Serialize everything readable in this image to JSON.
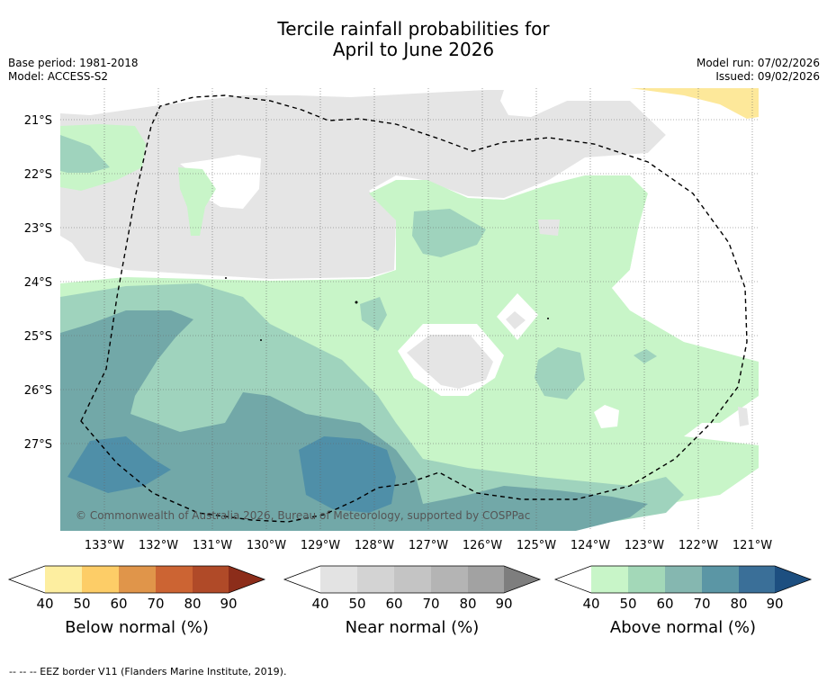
{
  "title": {
    "line1": "Tercile rainfall probabilities for",
    "line2": "April to June 2026"
  },
  "meta_left": {
    "base_period": "Base period: 1981-2018",
    "model": "Model: ACCESS-S2"
  },
  "meta_right": {
    "model_run": "Model run: 07/02/2026",
    "issued": "Issued: 09/02/2026"
  },
  "map": {
    "lat_labels": [
      "21°S",
      "22°S",
      "23°S",
      "24°S",
      "25°S",
      "26°S",
      "27°S"
    ],
    "lon_labels": [
      "133°W",
      "132°W",
      "131°W",
      "130°W",
      "129°W",
      "128°W",
      "127°W",
      "126°W",
      "125°W",
      "124°W",
      "123°W",
      "122°W",
      "121°W"
    ],
    "copyright": "© Commonwealth of Australia 2026, Bureau of Meteorology, supported by COSPPac",
    "colors": {
      "near_grey": "#e5e5e5",
      "above_40": "#c8f5c8",
      "above_50": "#9fd3bd",
      "above_60": "#72a8a8",
      "above_70": "#4f8fa8",
      "above_80": "#3a6f98",
      "below_40": "#fde89a"
    }
  },
  "colorbars": [
    {
      "title": "Below normal (%)",
      "ticks": [
        "40",
        "50",
        "60",
        "70",
        "80",
        "90"
      ],
      "colors": [
        "#ffffff",
        "#fdeea0",
        "#fdcd67",
        "#e0954a",
        "#cc6433",
        "#b04a28",
        "#8c2d1a"
      ]
    },
    {
      "title": "Near normal (%)",
      "ticks": [
        "40",
        "50",
        "60",
        "70",
        "80",
        "90"
      ],
      "colors": [
        "#ffffff",
        "#e3e3e3",
        "#d3d3d3",
        "#c4c4c4",
        "#b4b4b4",
        "#a2a2a2",
        "#7e7e7e"
      ]
    },
    {
      "title": "Above normal (%)",
      "ticks": [
        "40",
        "50",
        "60",
        "70",
        "80",
        "90"
      ],
      "colors": [
        "#ffffff",
        "#c8f5c8",
        "#a3d8b8",
        "#85b7b0",
        "#5b96a5",
        "#3a6f98",
        "#1d4f80"
      ]
    }
  ],
  "footnote": "-- -- -- EEZ border V11 (Flanders Marine Institute, 2019)."
}
